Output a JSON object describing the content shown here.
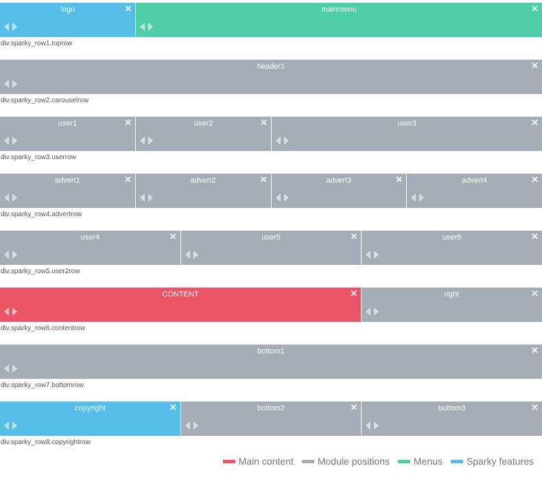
{
  "colors": {
    "module": "#a4adb6",
    "menu": "#4ecfaa",
    "feature": "#55bde8",
    "main": "#ec5568"
  },
  "rows": [
    {
      "label": "div.sparky_row1.toprow",
      "blocks": [
        {
          "title": "logo",
          "kind": "feature",
          "span": 1
        },
        {
          "title": "mainmenu",
          "kind": "menu",
          "span": 3
        }
      ]
    },
    {
      "label": "div.sparky_row2.carouselrow",
      "blocks": [
        {
          "title": "header1",
          "kind": "module",
          "span": 4
        }
      ]
    },
    {
      "label": "div.sparky_row3.userrow",
      "blocks": [
        {
          "title": "user1",
          "kind": "module",
          "span": 1
        },
        {
          "title": "user2",
          "kind": "module",
          "span": 1
        },
        {
          "title": "user3",
          "kind": "module",
          "span": 2
        }
      ]
    },
    {
      "label": "div.sparky_row4.advertrow",
      "blocks": [
        {
          "title": "advert1",
          "kind": "module",
          "span": 1
        },
        {
          "title": "advert2",
          "kind": "module",
          "span": 1
        },
        {
          "title": "advert3",
          "kind": "module",
          "span": 1
        },
        {
          "title": "advert4",
          "kind": "module",
          "span": 1
        }
      ]
    },
    {
      "label": "div.sparky_row5.user2row",
      "blocks": [
        {
          "title": "user4",
          "kind": "module",
          "span": 1
        },
        {
          "title": "user5",
          "kind": "module",
          "span": 1
        },
        {
          "title": "user6",
          "kind": "module",
          "span": 1
        }
      ]
    },
    {
      "label": "div.sparky_row6.contentrow",
      "blocks": [
        {
          "title": "CONTENT",
          "kind": "main",
          "span": 2
        },
        {
          "title": "right",
          "kind": "module",
          "span": 1
        }
      ]
    },
    {
      "label": "div.sparky_row7.bottomrow",
      "blocks": [
        {
          "title": "bottom1",
          "kind": "module",
          "span": 1
        }
      ]
    },
    {
      "label": "div.sparky_row8.copyrightrow",
      "blocks": [
        {
          "title": "copyright",
          "kind": "feature",
          "span": 1
        },
        {
          "title": "bottom2",
          "kind": "module",
          "span": 1
        },
        {
          "title": "bottom3",
          "kind": "module",
          "span": 1
        }
      ]
    }
  ],
  "icons": {
    "close": "close-icon",
    "move_left": "arrow-left-icon",
    "move_right": "arrow-right-icon"
  },
  "legend": [
    {
      "label": "Main content",
      "kind": "main"
    },
    {
      "label": "Module positions",
      "kind": "module"
    },
    {
      "label": "Menus",
      "kind": "menu"
    },
    {
      "label": "Sparky features",
      "kind": "feature"
    }
  ]
}
